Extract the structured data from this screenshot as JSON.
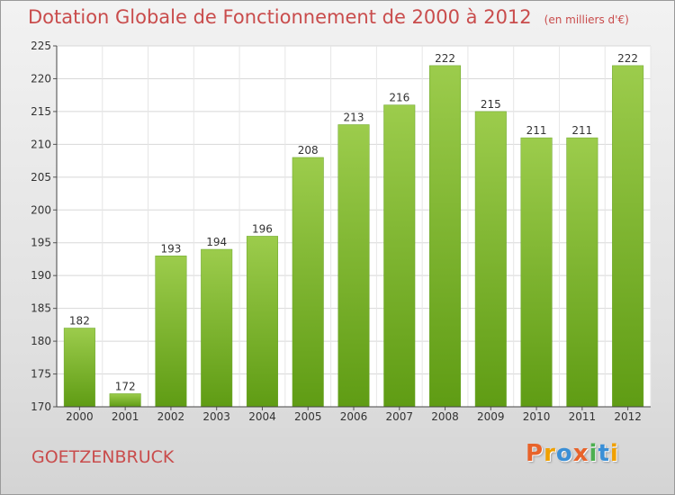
{
  "header": {
    "title": "Dotation Globale de Fonctionnement de 2000 à 2012",
    "subtitle": "(en milliers d'€)"
  },
  "footer": {
    "commune": "GOETZENBRUCK",
    "brand": "Proxiti"
  },
  "colors": {
    "title": "#c94c4c",
    "bar_light": "#9ccc4c",
    "bar_dark": "#5f9c14",
    "logo_letters": [
      "#e8632a",
      "#f0a000",
      "#3a8fd6",
      "#e8632a",
      "#4caf50",
      "#3a8fd6",
      "#f0a000"
    ]
  },
  "chart_data": {
    "type": "bar",
    "title": "Dotation Globale de Fonctionnement de 2000 à 2012",
    "subtitle": "(en milliers d'€)",
    "categories": [
      "2000",
      "2001",
      "2002",
      "2003",
      "2004",
      "2005",
      "2006",
      "2007",
      "2008",
      "2009",
      "2010",
      "2011",
      "2012"
    ],
    "values": [
      182,
      172,
      193,
      194,
      196,
      208,
      213,
      216,
      222,
      215,
      211,
      211,
      222
    ],
    "ylim": [
      170,
      225
    ],
    "yticks": [
      170,
      175,
      180,
      185,
      190,
      195,
      200,
      205,
      210,
      215,
      220,
      225
    ],
    "grid": true,
    "data_labels": true
  }
}
